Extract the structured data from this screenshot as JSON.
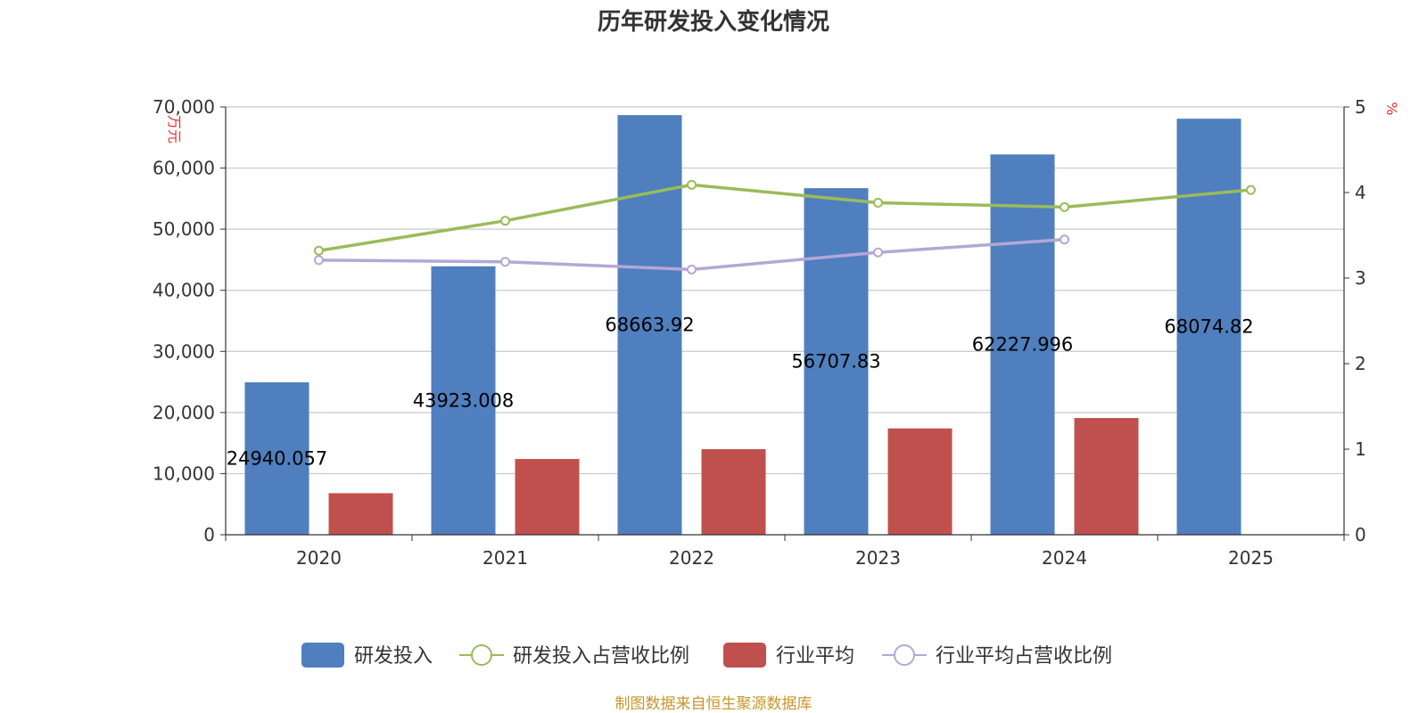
{
  "chart_data": {
    "type": "bar",
    "title": "历年研发投入变化情况",
    "categories": [
      "2020",
      "2021",
      "2022",
      "2023",
      "2024",
      "2025"
    ],
    "left_axis": {
      "unit": "万元",
      "ylim": [
        0,
        70000
      ],
      "ticks": [
        "0",
        "10,000",
        "20,000",
        "30,000",
        "40,000",
        "50,000",
        "60,000",
        "70,000"
      ]
    },
    "right_axis": {
      "unit": "%",
      "ylim": [
        0,
        5
      ],
      "ticks": [
        "0",
        "1",
        "2",
        "3",
        "4",
        "5"
      ]
    },
    "series": [
      {
        "name": "研发投入",
        "type": "bar",
        "axis": "left",
        "color": "#4f7fbe",
        "values": [
          24940.057,
          43923.008,
          68663.92,
          56707.83,
          62227.996,
          68074.82
        ],
        "labels": [
          "24940.057",
          "43923.008",
          "68663.92",
          "56707.83",
          "62227.996",
          "68074.82"
        ]
      },
      {
        "name": "研发投入占营收比例",
        "type": "line",
        "axis": "right",
        "color": "#9bbb59",
        "values": [
          3.32,
          3.67,
          4.09,
          3.88,
          3.83,
          4.03
        ]
      },
      {
        "name": "行业平均",
        "type": "bar",
        "axis": "left",
        "color": "#c0504d",
        "values": [
          6800,
          12400,
          14000,
          17400,
          19100,
          null
        ]
      },
      {
        "name": "行业平均占营收比例",
        "type": "line",
        "axis": "right",
        "color": "#b4a7d6",
        "values": [
          3.21,
          3.19,
          3.1,
          3.3,
          3.45,
          null
        ]
      }
    ],
    "legend_position": "bottom",
    "grid": true
  },
  "footer": {
    "source": "制图数据来自恒生聚源数据库"
  }
}
